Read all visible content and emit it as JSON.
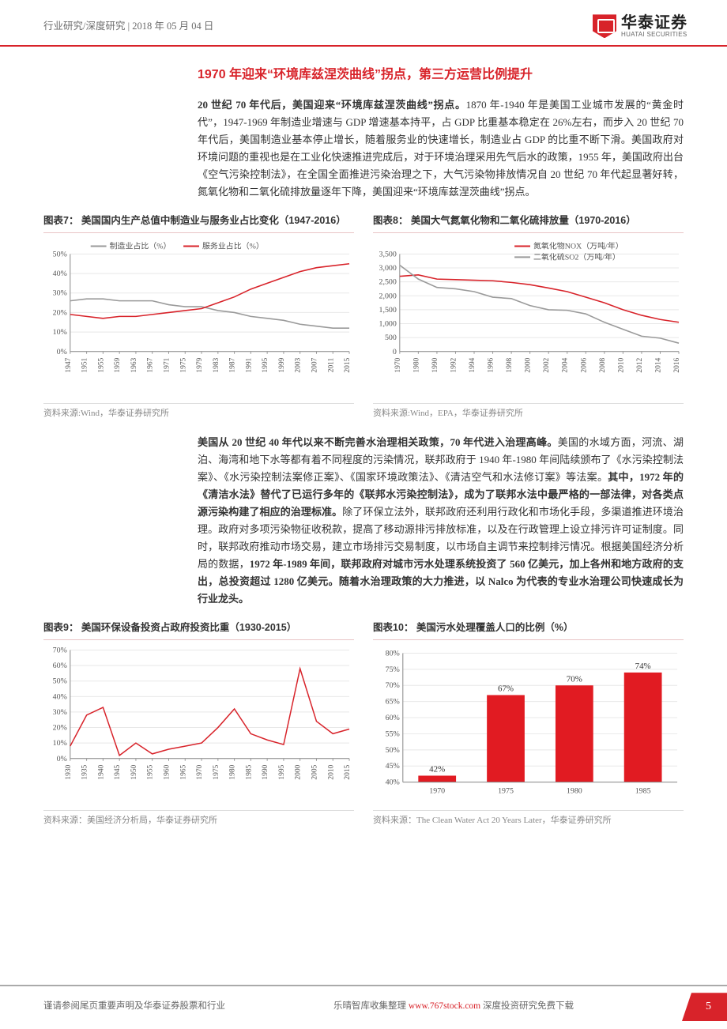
{
  "header": {
    "breadcrumb": "行业研究/深度研究   | 2018 年 05 月 04 日",
    "logo_cn": "华泰证券",
    "logo_en": "HUATAI SECURITIES"
  },
  "section_title": "1970 年迎来“环境库兹涅茨曲线”拐点，第三方运营比例提升",
  "para1_bold": "20 世纪 70 年代后，美国迎来“环境库兹涅茨曲线”拐点。",
  "para1_rest": "1870 年-1940 年是美国工业城市发展的“黄金时代”，1947-1969 年制造业增速与 GDP 增速基本持平，占 GDP 比重基本稳定在 26%左右，而步入 20 世纪 70 年代后，美国制造业基本停止增长，随着服务业的快速增长，制造业占 GDP 的比重不断下滑。美国政府对环境问题的重视也是在工业化快速推进完成后，对于环境治理采用先气后水的政策，1955 年，美国政府出台《空气污染控制法》，在全国全面推进污染治理之下，大气污染物排放情况自 20 世纪 70 年代起显著好转，氮氧化物和二氧化硫排放量逐年下降，美国迎来“环境库兹涅茨曲线”拐点。",
  "para2_a": "美国从 20 世纪 40 年代以来不断完善水治理相关政策，70 年代进入治理高峰。",
  "para2_b": "美国的水域方面，河流、湖泊、海湾和地下水等都有着不同程度的污染情况，联邦政府于 1940 年-1980 年间陆续颁布了《水污染控制法案》、《水污染控制法案修正案》、《国家环境政策法》、《清洁空气和水法修订案》等法案。",
  "para2_c": "其中，1972 年的《清洁水法》替代了已运行多年的《联邦水污染控制法》，成为了联邦水法中最严格的一部法律，对各类点源污染构建了相应的治理标准。",
  "para2_d": "除了环保立法外，联邦政府还利用行政化和市场化手段，多渠道推进环境治理。政府对多项污染物征收税款，提高了移动源排污排放标准，以及在行政管理上设立排污许可证制度。同时，联邦政府推动市场交易，建立市场排污交易制度，以市场自主调节来控制排污情况。根据美国经济分析局的数据，",
  "para2_e": "1972 年-1989 年间，联邦政府对城市污水处理系统投资了 560 亿美元，加上各州和地方政府的支出，总投资超过 1280 亿美元。随着水治理政策的大力推进，以 Nalco 为代表的专业水治理公司快速成长为行业龙头。",
  "chart7": {
    "title": "图表7：  美国国内生产总值中制造业与服务业占比变化（1947-2016）",
    "type": "line",
    "legend": [
      "制造业占比（%）",
      "服务业占比（%）"
    ],
    "colors": [
      "#9a9a9a",
      "#d8232a"
    ],
    "x_ticks": [
      "1947",
      "1951",
      "1955",
      "1959",
      "1963",
      "1967",
      "1971",
      "1975",
      "1979",
      "1983",
      "1987",
      "1991",
      "1995",
      "1999",
      "2003",
      "2007",
      "2011",
      "2015"
    ],
    "y_ticks": [
      0,
      10,
      20,
      30,
      40,
      50
    ],
    "ylim": [
      0,
      50
    ],
    "series_mfg": [
      26,
      27,
      27,
      26,
      26,
      26,
      24,
      23,
      23,
      21,
      20,
      18,
      17,
      16,
      14,
      13,
      12,
      12
    ],
    "series_svc": [
      19,
      18,
      17,
      18,
      18,
      19,
      20,
      21,
      22,
      25,
      28,
      32,
      35,
      38,
      41,
      43,
      44,
      45
    ],
    "background": "#ffffff",
    "grid_color": "#e8e8e8",
    "line_width": 1.6,
    "source": "资料来源:Wind，华泰证券研究所"
  },
  "chart8": {
    "title": "图表8：  美国大气氮氧化物和二氧化硫排放量（1970-2016）",
    "type": "line",
    "legend": [
      "氮氧化物NOX（万吨/年）",
      "二氧化硫SO2（万吨/年）"
    ],
    "colors": [
      "#d8232a",
      "#9a9a9a"
    ],
    "x_ticks": [
      "1970",
      "1980",
      "1990",
      "1992",
      "1994",
      "1996",
      "1998",
      "2000",
      "2002",
      "2004",
      "2006",
      "2008",
      "2010",
      "2012",
      "2014",
      "2016"
    ],
    "y_ticks": [
      0,
      500,
      1000,
      1500,
      2000,
      2500,
      3000,
      3500
    ],
    "ylim": [
      0,
      3500
    ],
    "series_nox": [
      2700,
      2750,
      2600,
      2580,
      2560,
      2540,
      2480,
      2400,
      2280,
      2150,
      1950,
      1750,
      1500,
      1300,
      1150,
      1050
    ],
    "series_so2": [
      3100,
      2600,
      2300,
      2250,
      2150,
      1950,
      1900,
      1650,
      1500,
      1480,
      1350,
      1050,
      800,
      550,
      480,
      300
    ],
    "background": "#ffffff",
    "grid_color": "#e8e8e8",
    "line_width": 1.6,
    "source": "资料来源:Wind，EPA，华泰证券研究所"
  },
  "chart9": {
    "title": "图表9：  美国环保设备投资占政府投资比重（1930-2015）",
    "type": "line",
    "legend": [],
    "colors": [
      "#d8232a"
    ],
    "x_ticks": [
      "1930",
      "1935",
      "1940",
      "1945",
      "1950",
      "1955",
      "1960",
      "1965",
      "1970",
      "1975",
      "1980",
      "1985",
      "1990",
      "1995",
      "2000",
      "2005",
      "2010",
      "2015"
    ],
    "y_ticks": [
      0,
      10,
      20,
      30,
      40,
      50,
      60,
      70
    ],
    "ylim": [
      0,
      70
    ],
    "series": [
      8,
      28,
      33,
      2,
      10,
      3,
      6,
      8,
      10,
      20,
      32,
      16,
      12,
      9,
      58,
      24,
      16,
      19
    ],
    "background": "#ffffff",
    "grid_color": "#e8e8e8",
    "line_width": 1.5,
    "source": "资料来源：美国经济分析局，华泰证券研究所"
  },
  "chart10": {
    "title": "图表10：  美国污水处理覆盖人口的比例（%）",
    "type": "bar",
    "categories": [
      "1970",
      "1975",
      "1980",
      "1985"
    ],
    "values": [
      42,
      67,
      70,
      74
    ],
    "value_labels": [
      "42%",
      "67%",
      "70%",
      "74%"
    ],
    "bar_color": "#e11b22",
    "y_ticks": [
      40,
      45,
      50,
      55,
      60,
      65,
      70,
      75,
      80
    ],
    "ylim": [
      40,
      80
    ],
    "background": "#ffffff",
    "grid_color": "#e8e8e8",
    "bar_width": 0.55,
    "label_fontsize": 11,
    "source": "资料来源：The Clean Water Act 20 Years Later，华泰证券研究所"
  },
  "footer": {
    "left": "谨请参阅尾页重要声明及华泰证券股票和行业",
    "mid_a": "乐晴智库收集整理 ",
    "mid_b": "www.767stock.com",
    "mid_c": " 深度投资研究免费下载",
    "page": "5"
  }
}
